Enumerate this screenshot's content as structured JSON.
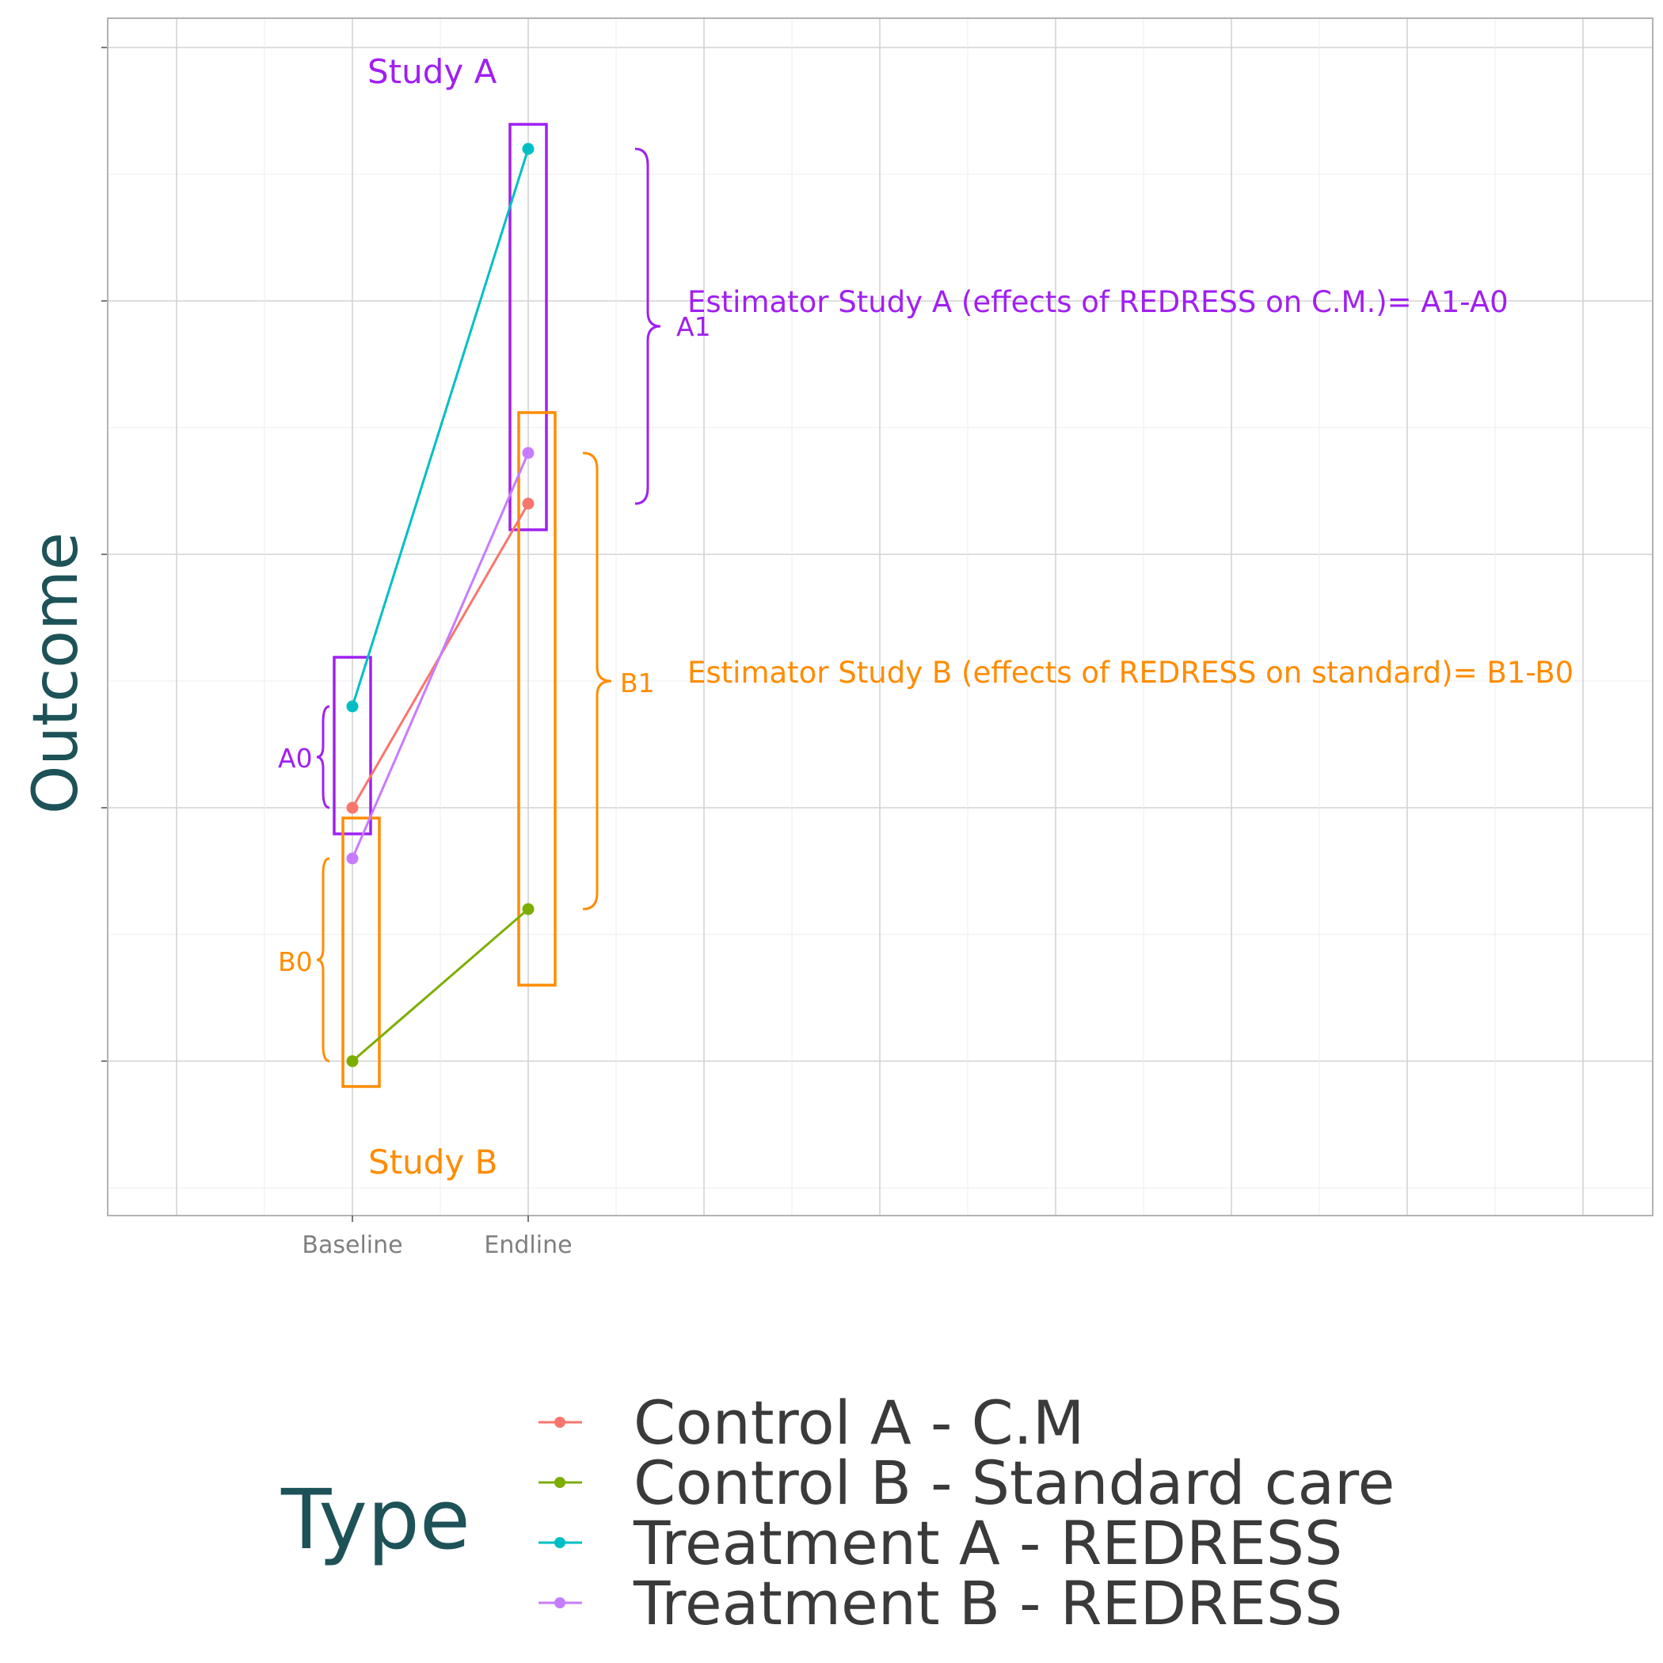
{
  "chart_data": {
    "type": "line",
    "x_categories": [
      "Baseline",
      "Endline"
    ],
    "ylabel": "Outcome",
    "ylim": [
      -0.5,
      4.1
    ],
    "grid": true,
    "series": [
      {
        "name": "Control A - C.M",
        "color": "#f8766d",
        "values": [
          1.0,
          2.2
        ]
      },
      {
        "name": "Control B - Standard care",
        "color": "#7cae00",
        "values": [
          0.0,
          0.6
        ]
      },
      {
        "name": "Treatment A - REDRESS",
        "color": "#00bfc4",
        "values": [
          1.4,
          3.6
        ]
      },
      {
        "name": "Treatment B - REDRESS",
        "color": "#c77cff",
        "values": [
          0.8,
          2.4
        ]
      }
    ],
    "annotations": {
      "study_a": "Study A",
      "study_b": "Study B",
      "a0": "A0",
      "a1": "A1",
      "b0": "B0",
      "b1": "B1",
      "estimator_a": "Estimator Study A (effects of REDRESS on C.M.)= A1-A0",
      "estimator_b": "Estimator Study B (effects of REDRESS on standard)= B1-B0"
    },
    "annotation_colors": {
      "study_a": "#a020f0",
      "study_b": "#ff8c00"
    },
    "legend": {
      "title": "Type",
      "placement": "bottom"
    }
  }
}
